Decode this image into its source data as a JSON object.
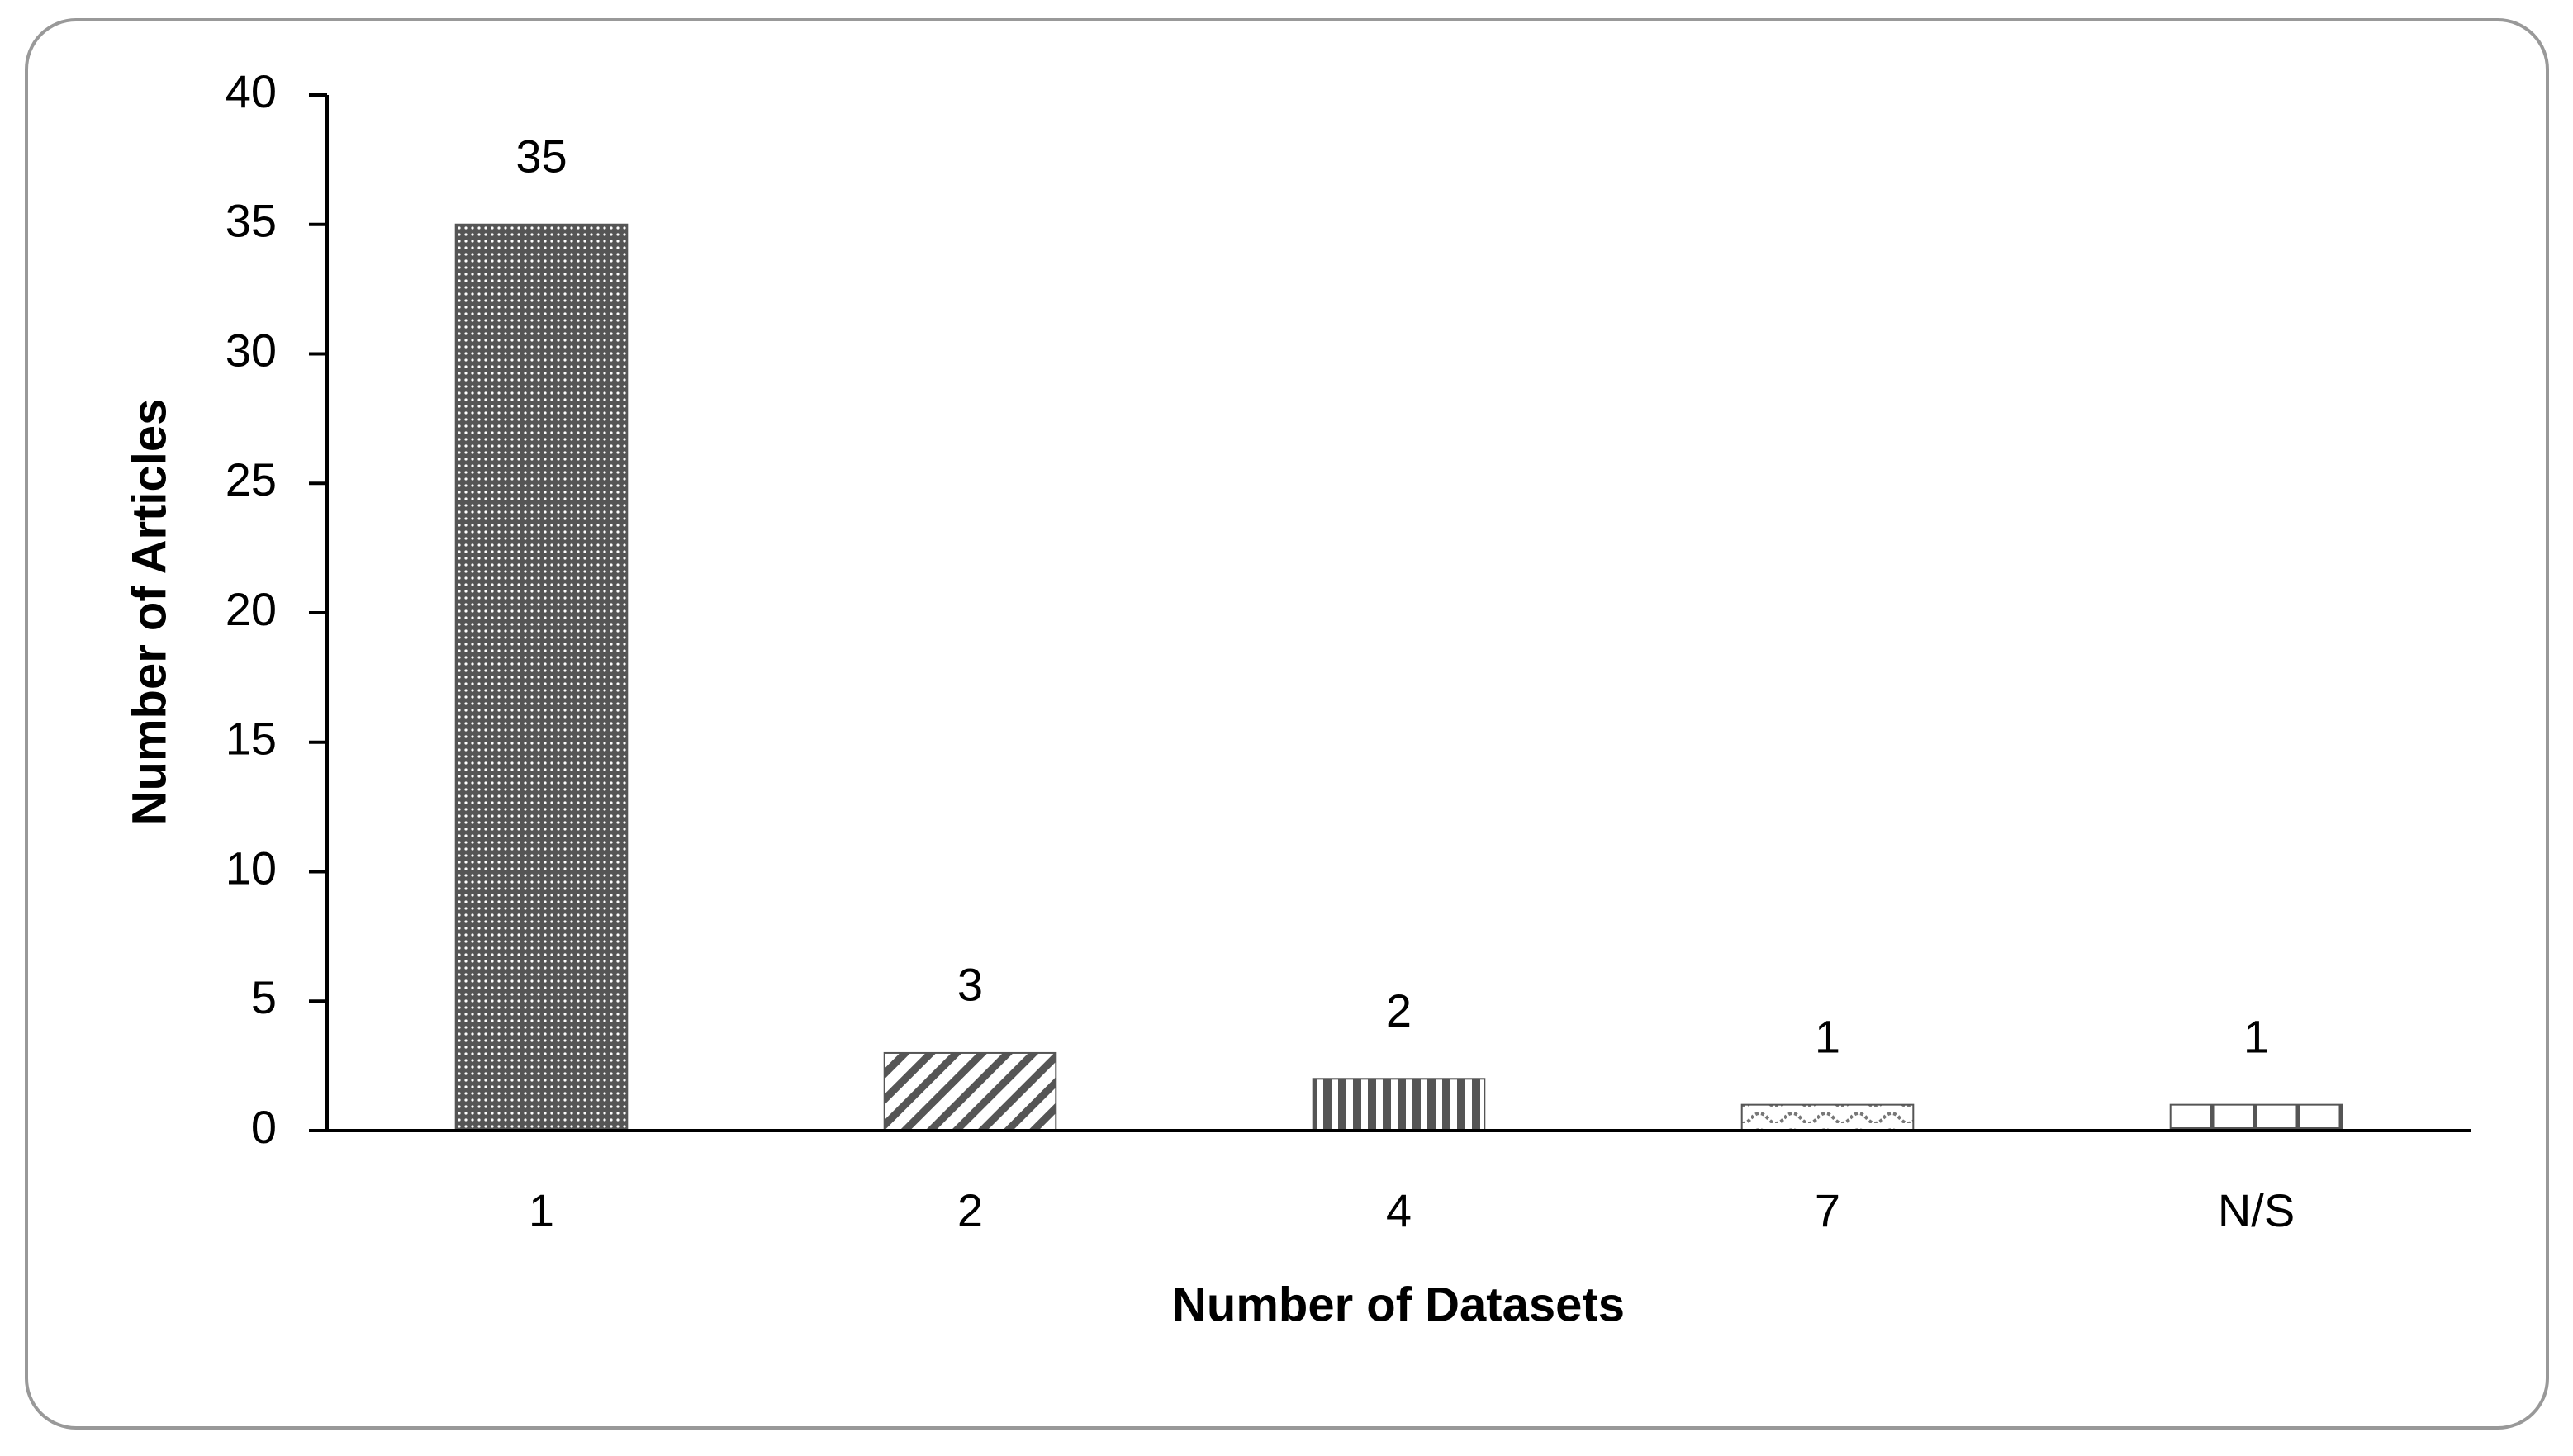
{
  "chart_data": {
    "type": "bar",
    "x_label": "Number of Datasets",
    "y_label": "Number of Articles",
    "categories": [
      "1",
      "2",
      "4",
      "7",
      "N/S"
    ],
    "values": [
      35,
      3,
      2,
      1,
      1
    ],
    "color": "#555555",
    "patterns": [
      "dots",
      "diagonal",
      "vertical",
      "wave",
      "cross"
    ],
    "ylim": [
      0,
      40
    ],
    "yticks": [
      0,
      5,
      10,
      15,
      20,
      25,
      30,
      35,
      40
    ],
    "grid": false
  }
}
